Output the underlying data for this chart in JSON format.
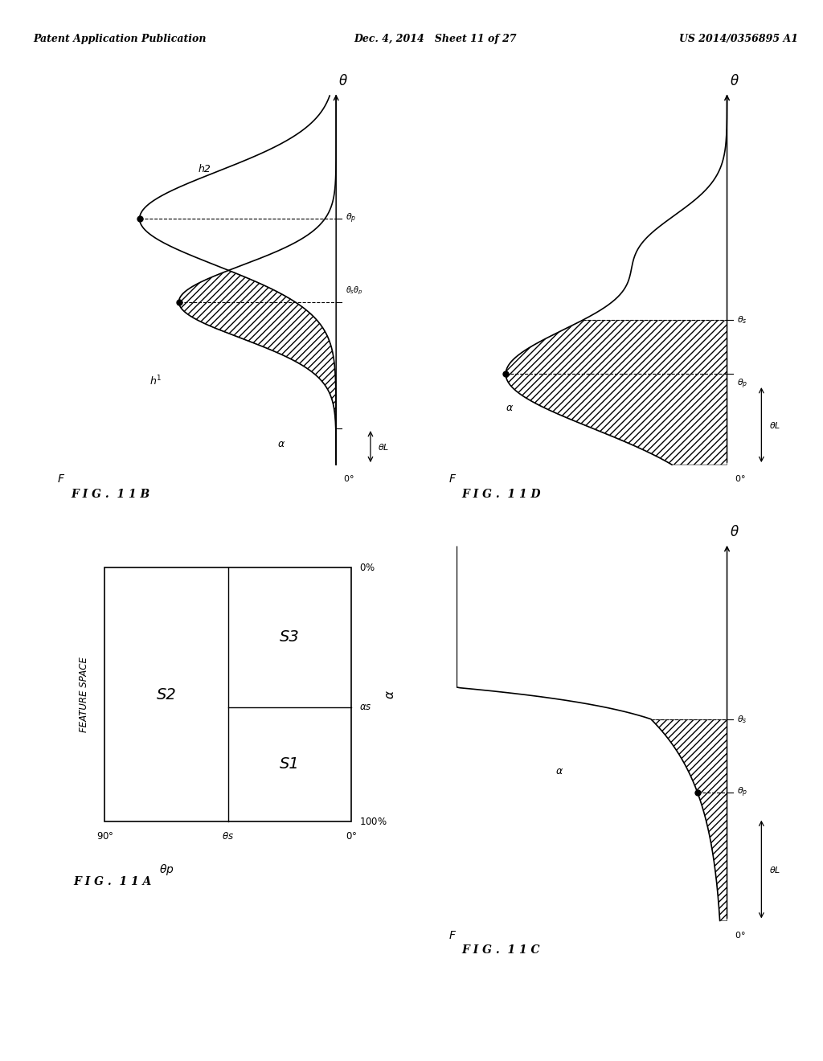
{
  "header_left": "Patent Application Publication",
  "header_mid": "Dec. 4, 2014   Sheet 11 of 27",
  "header_right": "US 2014/0356895 A1",
  "fig11A_label": "F I G .  1 1 A",
  "fig11B_label": "F I G .  1 1 B",
  "fig11C_label": "F I G .  1 1 C",
  "fig11D_label": "F I G .  1 1 D",
  "feature_space_label": "FEATURE SPACE",
  "background": "#ffffff",
  "theta_p_label": "\\u03b8p",
  "theta_s_label": "\\u03b8s",
  "theta_L_label": "\\u03b8L",
  "alpha_label": "\\u03b1"
}
